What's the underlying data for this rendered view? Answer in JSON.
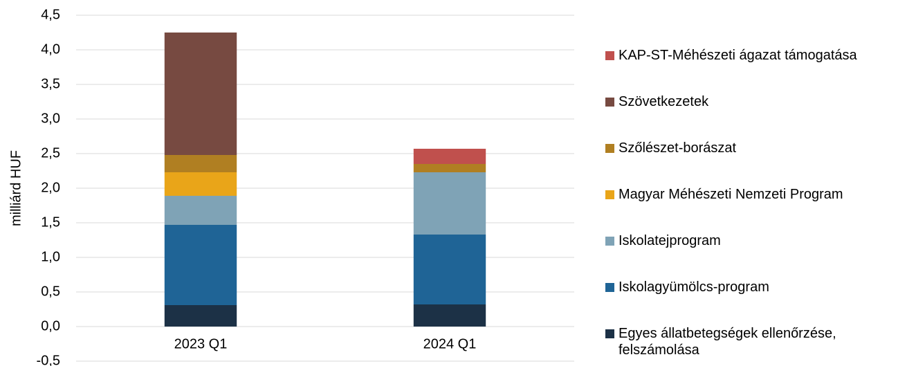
{
  "chart_data": {
    "type": "stacked_bar",
    "y_axis_label": "milliárd HUF",
    "categories": [
      "2023 Q1",
      "2024 Q1"
    ],
    "series": [
      {
        "name": "Egyes állatbetegségek ellenőrzése, felszámolása",
        "color": "#1c3146",
        "values": [
          0.31,
          0.32
        ]
      },
      {
        "name": "Iskolagyümölcs-program",
        "color": "#1f6496",
        "values": [
          1.16,
          1.01
        ]
      },
      {
        "name": "Iskolatejprogram",
        "color": "#7fa3b6",
        "values": [
          0.42,
          0.9
        ]
      },
      {
        "name": "Magyar Méhészeti Nemzeti Program",
        "color": "#e9a519",
        "values": [
          0.34,
          0
        ]
      },
      {
        "name": "Szőlészet-borászat",
        "color": "#b07f22",
        "values": [
          0.25,
          0.12
        ]
      },
      {
        "name": "Szövetkezetek",
        "color": "#774a41",
        "values": [
          1.77,
          0
        ]
      },
      {
        "name": "KAP-ST-Méhészeti ágazat támogatása",
        "color": "#c0504d",
        "values": [
          0,
          0.22
        ]
      }
    ],
    "ylim": [
      -0.5,
      4.5
    ],
    "yticks": [
      {
        "value": -0.5,
        "label": "-0,5"
      },
      {
        "value": 0,
        "label": "0,0"
      },
      {
        "value": 0.5,
        "label": "0,5"
      },
      {
        "value": 1,
        "label": "1,0"
      },
      {
        "value": 1.5,
        "label": "1,5"
      },
      {
        "value": 2,
        "label": "2,0"
      },
      {
        "value": 2.5,
        "label": "2,5"
      },
      {
        "value": 3,
        "label": "3,0"
      },
      {
        "value": 3.5,
        "label": "3,5"
      },
      {
        "value": 4,
        "label": "4,0"
      },
      {
        "value": 4.5,
        "label": "4,5"
      }
    ],
    "grid": true,
    "legend": "right"
  }
}
